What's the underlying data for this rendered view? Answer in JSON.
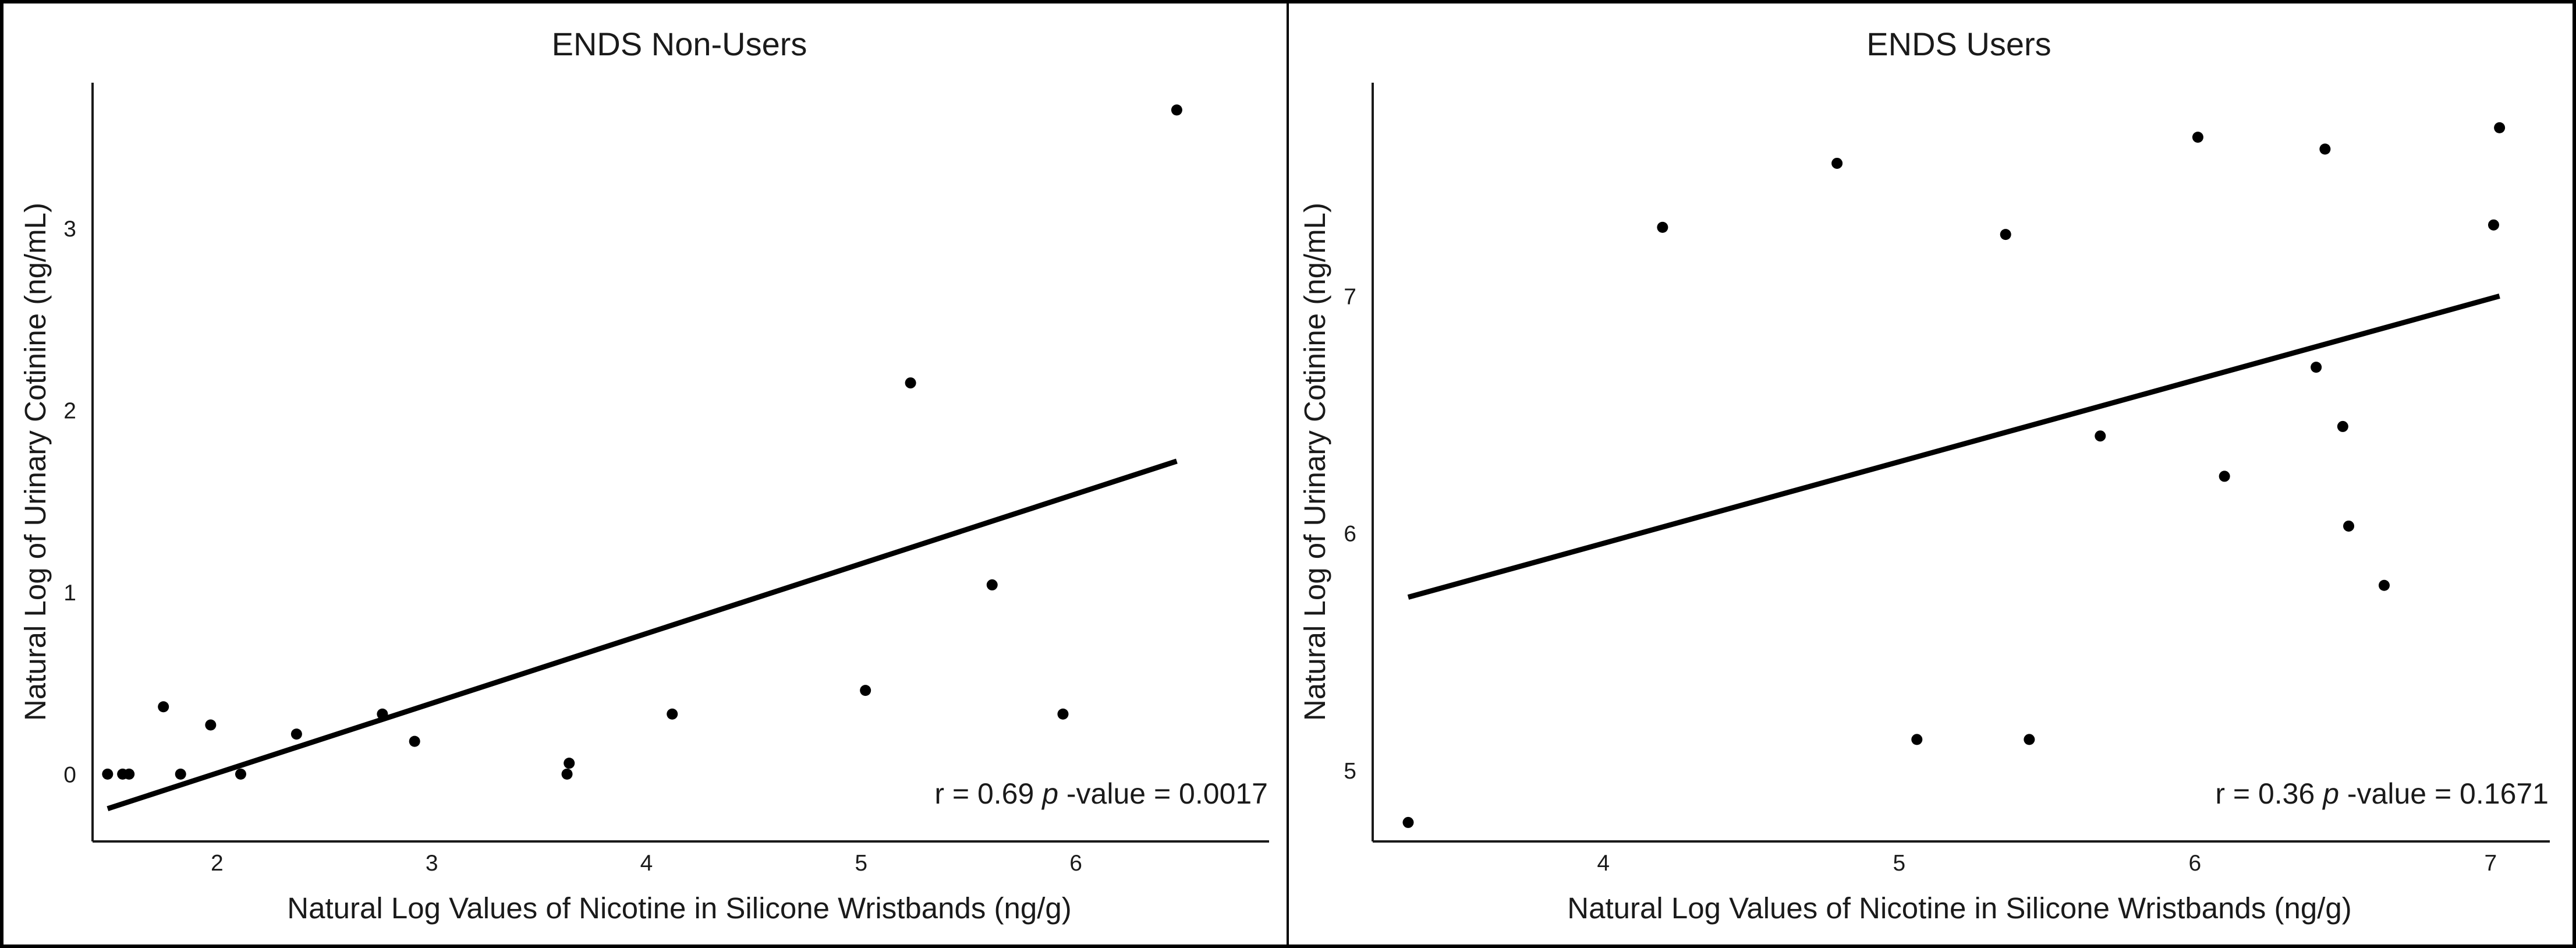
{
  "chart_data": [
    {
      "type": "scatter",
      "title": "ENDS Non-Users",
      "xlabel": "Natural Log Values of Nicotine in Silicone Wristbands (ng/g)",
      "ylabel": "Natural Log of Urinary Cotinine (ng/mL)",
      "xlim": [
        1.42,
        6.9
      ],
      "ylim": [
        -0.37,
        3.8
      ],
      "xticks": [
        2,
        3,
        4,
        5,
        6
      ],
      "yticks": [
        0,
        1,
        2,
        3
      ],
      "points": [
        {
          "x": 1.49,
          "y": 0.0
        },
        {
          "x": 1.56,
          "y": 0.0
        },
        {
          "x": 1.59,
          "y": 0.0
        },
        {
          "x": 1.75,
          "y": 0.37
        },
        {
          "x": 1.83,
          "y": 0.0
        },
        {
          "x": 1.97,
          "y": 0.27
        },
        {
          "x": 2.11,
          "y": 0.0
        },
        {
          "x": 2.37,
          "y": 0.22
        },
        {
          "x": 2.77,
          "y": 0.33
        },
        {
          "x": 2.92,
          "y": 0.18
        },
        {
          "x": 3.63,
          "y": 0.0
        },
        {
          "x": 3.64,
          "y": 0.06
        },
        {
          "x": 4.12,
          "y": 0.33
        },
        {
          "x": 5.02,
          "y": 0.46
        },
        {
          "x": 5.23,
          "y": 2.15
        },
        {
          "x": 5.61,
          "y": 1.04
        },
        {
          "x": 5.94,
          "y": 0.33
        },
        {
          "x": 6.47,
          "y": 3.65
        }
      ],
      "trend_line": {
        "x": [
          1.49,
          6.47
        ],
        "y": [
          -0.19,
          1.72
        ]
      },
      "annotation": {
        "prefix": "r = 0.69 ",
        "italic": "p",
        "suffix": " -value = 0.0017"
      }
    },
    {
      "type": "scatter",
      "title": "ENDS Users",
      "xlabel": "Natural Log Values of Nicotine in Silicone Wristbands (ng/g)",
      "ylabel": "Natural Log of Urinary Cotinine (ng/mL)",
      "xlim": [
        3.22,
        7.2
      ],
      "ylim": [
        4.7,
        7.9
      ],
      "xticks": [
        4,
        5,
        6,
        7
      ],
      "yticks": [
        5,
        6,
        7
      ],
      "points": [
        {
          "x": 3.34,
          "y": 4.78
        },
        {
          "x": 4.2,
          "y": 7.29
        },
        {
          "x": 4.79,
          "y": 7.56
        },
        {
          "x": 5.06,
          "y": 5.13
        },
        {
          "x": 5.36,
          "y": 7.26
        },
        {
          "x": 5.44,
          "y": 5.13
        },
        {
          "x": 5.68,
          "y": 6.41
        },
        {
          "x": 6.01,
          "y": 7.67
        },
        {
          "x": 6.1,
          "y": 6.24
        },
        {
          "x": 6.41,
          "y": 6.7
        },
        {
          "x": 6.44,
          "y": 7.62
        },
        {
          "x": 6.5,
          "y": 6.45
        },
        {
          "x": 6.52,
          "y": 6.03
        },
        {
          "x": 6.64,
          "y": 5.78
        },
        {
          "x": 7.01,
          "y": 7.3
        },
        {
          "x": 7.03,
          "y": 7.71
        }
      ],
      "trend_line": {
        "x": [
          3.34,
          7.03
        ],
        "y": [
          5.73,
          7.0
        ]
      },
      "annotation": {
        "prefix": "r = 0.36 ",
        "italic": "p",
        "suffix": " -value = 0.1671"
      }
    }
  ]
}
